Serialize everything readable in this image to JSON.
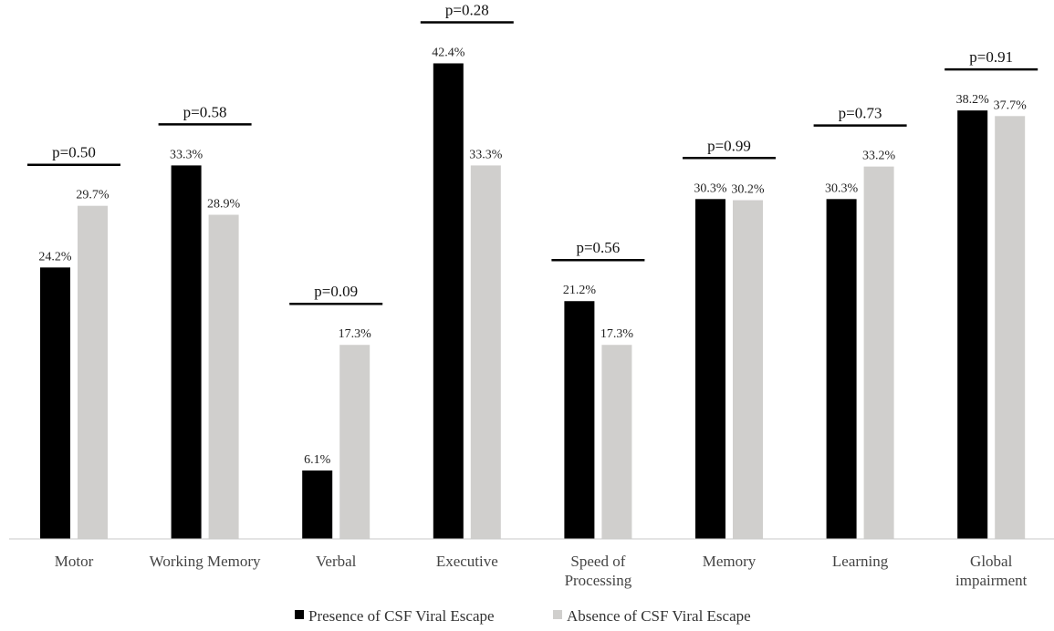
{
  "chart_data": {
    "type": "bar",
    "categories": [
      [
        "Motor"
      ],
      [
        "Working Memory"
      ],
      [
        "Verbal"
      ],
      [
        "Executive"
      ],
      [
        "Speed of",
        "Processing"
      ],
      [
        "Memory"
      ],
      [
        "Learning"
      ],
      [
        "Global",
        "impairment"
      ]
    ],
    "series": [
      {
        "name": "Presence of CSF Viral Escape",
        "color": "#000000",
        "values": [
          24.2,
          33.3,
          6.1,
          42.4,
          21.2,
          30.3,
          30.3,
          38.2
        ],
        "labels": [
          "24.2%",
          "33.3%",
          "6.1%",
          "42.4%",
          "21.2%",
          "30.3%",
          "30.3%",
          "38.2%"
        ]
      },
      {
        "name": "Absence of CSF Viral Escape",
        "color": "#d0cfcd",
        "values": [
          29.7,
          28.9,
          17.3,
          33.3,
          17.3,
          30.2,
          33.2,
          37.7
        ],
        "labels": [
          "29.7%",
          "28.9%",
          "17.3%",
          "33.3%",
          "17.3%",
          "30.2%",
          "33.2%",
          "37.7%"
        ]
      }
    ],
    "annotations": [
      "p=0.50",
      "p=0.58",
      "p=0.09",
      "p=0.28",
      "p=0.56",
      "p=0.99",
      "p=0.73",
      "p=0.91"
    ],
    "ylim": [
      0,
      45
    ],
    "grid": false,
    "legend": "bottom",
    "xlabel": "",
    "ylabel": ""
  }
}
